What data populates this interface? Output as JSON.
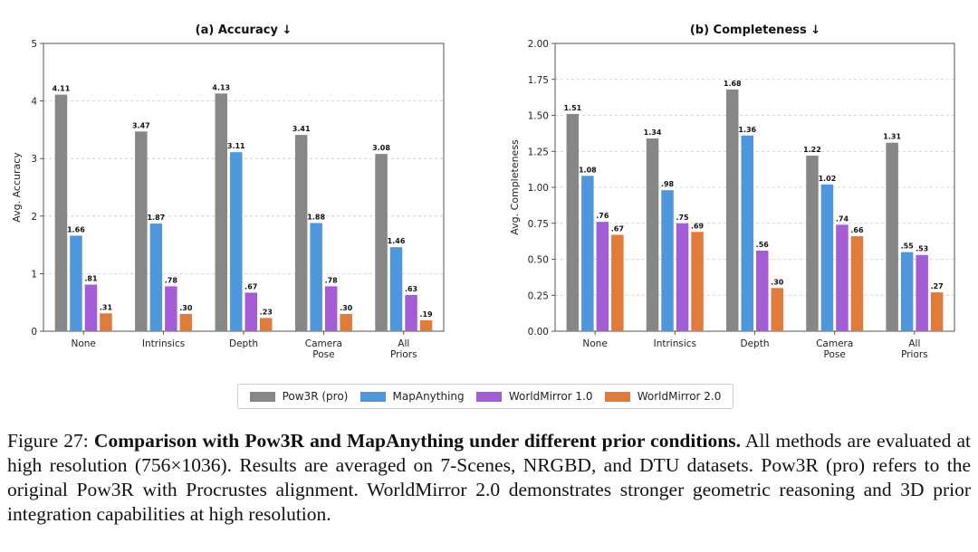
{
  "chart_data": [
    {
      "type": "bar",
      "title": "(a) Accuracy ↓",
      "ylabel": "Avg. Accuracy",
      "xlabel": "",
      "ylim": [
        0,
        5
      ],
      "yticks": [
        "0",
        "1",
        "2",
        "3",
        "4",
        "5"
      ],
      "ytick_values": [
        0,
        1,
        2,
        3,
        4,
        5
      ],
      "grid": true,
      "categories": [
        [
          "None"
        ],
        [
          "Intrinsics"
        ],
        [
          "Depth"
        ],
        [
          "Camera",
          "Pose"
        ],
        [
          "All",
          "Priors"
        ]
      ],
      "series": [
        {
          "name": "Pow3R (pro)",
          "values": [
            4.11,
            3.47,
            4.13,
            3.41,
            3.08
          ],
          "labels": [
            "4.11",
            "3.47",
            "4.13",
            "3.41",
            "3.08"
          ]
        },
        {
          "name": "MapAnything",
          "values": [
            1.66,
            1.87,
            3.11,
            1.88,
            1.46
          ],
          "labels": [
            "1.66",
            "1.87",
            "3.11",
            "1.88",
            "1.46"
          ]
        },
        {
          "name": "WorldMirror 1.0",
          "values": [
            0.81,
            0.78,
            0.67,
            0.78,
            0.63
          ],
          "labels": [
            ".81",
            ".78",
            ".67",
            ".78",
            ".63"
          ]
        },
        {
          "name": "WorldMirror 2.0",
          "values": [
            0.31,
            0.3,
            0.23,
            0.3,
            0.19
          ],
          "labels": [
            ".31",
            ".30",
            ".23",
            ".30",
            ".19"
          ]
        }
      ]
    },
    {
      "type": "bar",
      "title": "(b) Completeness ↓",
      "ylabel": "Avg. Completeness",
      "xlabel": "",
      "ylim": [
        0,
        2.0
      ],
      "yticks": [
        "0.00",
        "0.25",
        "0.50",
        "0.75",
        "1.00",
        "1.25",
        "1.50",
        "1.75",
        "2.00"
      ],
      "ytick_values": [
        0,
        0.25,
        0.5,
        0.75,
        1.0,
        1.25,
        1.5,
        1.75,
        2.0
      ],
      "grid": true,
      "categories": [
        [
          "None"
        ],
        [
          "Intrinsics"
        ],
        [
          "Depth"
        ],
        [
          "Camera",
          "Pose"
        ],
        [
          "All",
          "Priors"
        ]
      ],
      "series": [
        {
          "name": "Pow3R (pro)",
          "values": [
            1.51,
            1.34,
            1.68,
            1.22,
            1.31
          ],
          "labels": [
            "1.51",
            "1.34",
            "1.68",
            "1.22",
            "1.31"
          ]
        },
        {
          "name": "MapAnything",
          "values": [
            1.08,
            0.98,
            1.36,
            1.02,
            0.55
          ],
          "labels": [
            "1.08",
            ".98",
            "1.36",
            "1.02",
            ".55"
          ]
        },
        {
          "name": "WorldMirror 1.0",
          "values": [
            0.76,
            0.75,
            0.56,
            0.74,
            0.53
          ],
          "labels": [
            ".76",
            ".75",
            ".56",
            ".74",
            ".53"
          ]
        },
        {
          "name": "WorldMirror 2.0",
          "values": [
            0.67,
            0.69,
            0.3,
            0.66,
            0.27
          ],
          "labels": [
            ".67",
            ".69",
            ".30",
            ".66",
            ".27"
          ]
        }
      ]
    }
  ],
  "colors": {
    "pow3r": "#878787",
    "mapanything": "#4e97dc",
    "worldmirror1": "#a45dd6",
    "worldmirror2": "#e07b39"
  },
  "legend": {
    "pow3r": "Pow3R (pro)",
    "mapanything": "MapAnything",
    "worldmirror1": "WorldMirror 1.0",
    "worldmirror2": "WorldMirror 2.0"
  },
  "caption": {
    "label": "Figure 27:",
    "bold": "Comparison with Pow3R and MapAnything under different prior conditions.",
    "text": "All methods are evaluated at high resolution (756×1036). Results are averaged on 7-Scenes, NRGBD, and DTU datasets. Pow3R (pro) refers to the original Pow3R with Procrustes alignment. WorldMirror 2.0 demonstrates stronger geometric reasoning and 3D prior integration capabilities at high resolution."
  }
}
